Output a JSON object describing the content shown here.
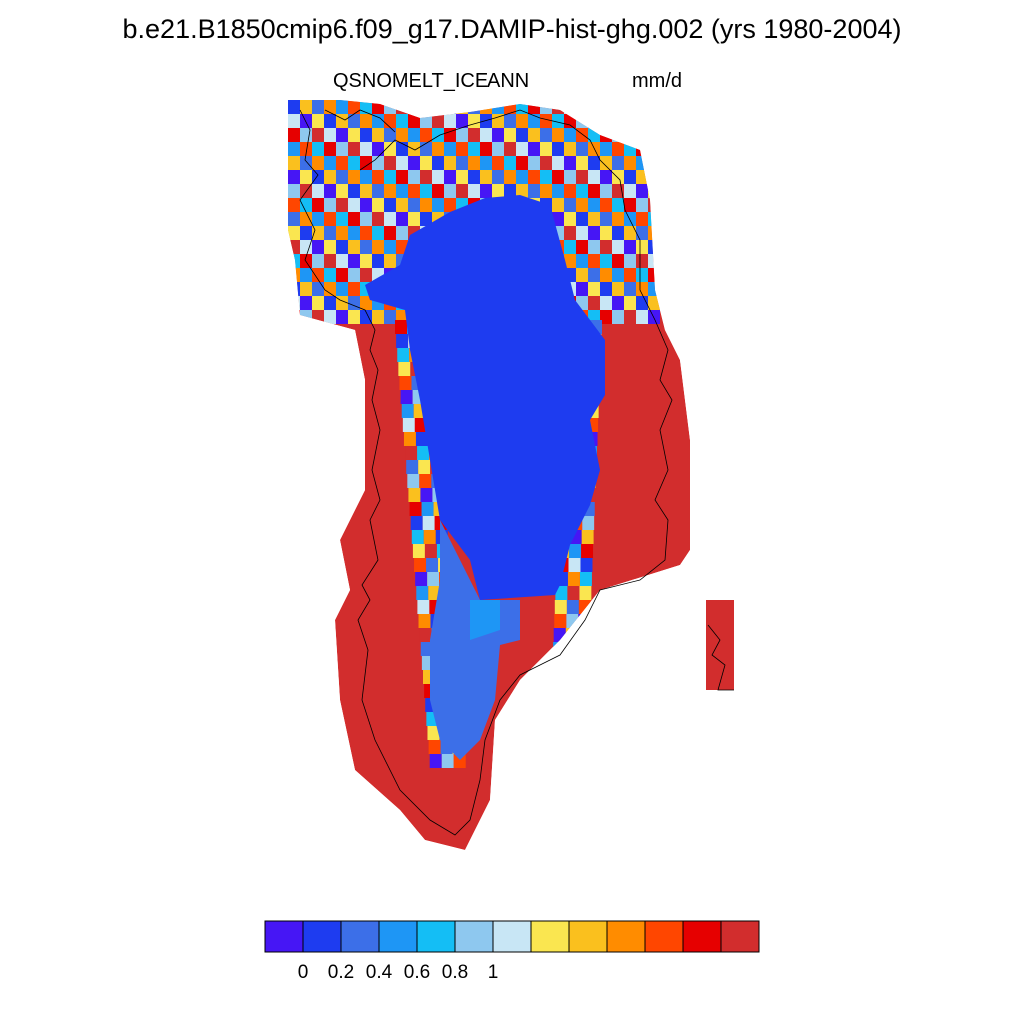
{
  "header": {
    "title": "b.e21.B1850cmip6.f09_g17.DAMIP-hist-ghg.002 (yrs 1980-2004)",
    "variable": "QSNOMELT_ICE",
    "season": "ANN",
    "units": "mm/d"
  },
  "colorbar": {
    "colors": [
      "#4616f5",
      "#1e3cf0",
      "#3c6fe8",
      "#1e96f5",
      "#14bef5",
      "#8ec8ef",
      "#c8e6f5",
      "#fae650",
      "#fac01e",
      "#ff8c00",
      "#ff4600",
      "#e60000",
      "#d22d2d"
    ],
    "tick_labels": [
      "0",
      "0.2",
      "0.4",
      "0.6",
      "0.8",
      "1"
    ]
  },
  "map": {
    "region": "Greenland",
    "colors": {
      "interior": "#1e3cf0",
      "margin": "#d22d2d",
      "coastline": "#000000"
    }
  }
}
